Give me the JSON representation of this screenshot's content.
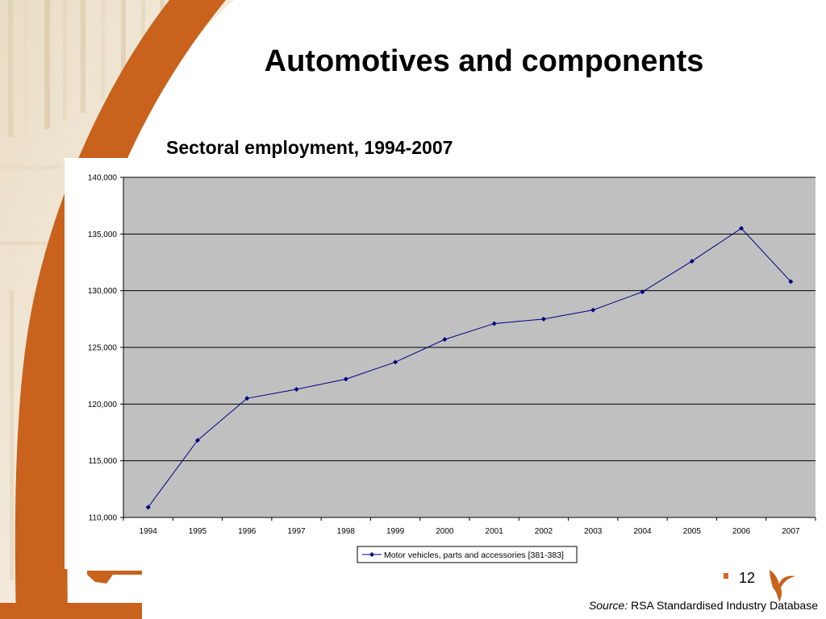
{
  "slide": {
    "title": "Automotives and components",
    "page_number": "12",
    "source_label": "Source:",
    "source_text": "RSA Standardised Industry Database",
    "accent_color": "#c8621d",
    "logo_icon": "stylized-x-logo-icon"
  },
  "chart_data": {
    "type": "line",
    "title": "Sectoral employment, 1994-2007",
    "xlabel": "",
    "ylabel": "",
    "categories": [
      "1994",
      "1995",
      "1996",
      "1997",
      "1998",
      "1999",
      "2000",
      "2001",
      "2002",
      "2003",
      "2004",
      "2005",
      "2006",
      "2007"
    ],
    "series": [
      {
        "name": "Motor vehicles, parts and accessories [381-383]",
        "color": "#000080",
        "values": [
          110900,
          116800,
          120500,
          121300,
          122200,
          123700,
          125700,
          127100,
          127500,
          128300,
          129900,
          132600,
          135500,
          130800
        ]
      }
    ],
    "ylim": [
      110000,
      140000
    ],
    "yticks": [
      110000,
      115000,
      120000,
      125000,
      130000,
      135000,
      140000
    ],
    "ytick_labels": [
      "110,000",
      "115,000",
      "120,000",
      "125,000",
      "130,000",
      "135,000",
      "140,000"
    ],
    "grid": true,
    "plot_background": "#c0c0c0",
    "legend_position": "bottom"
  }
}
